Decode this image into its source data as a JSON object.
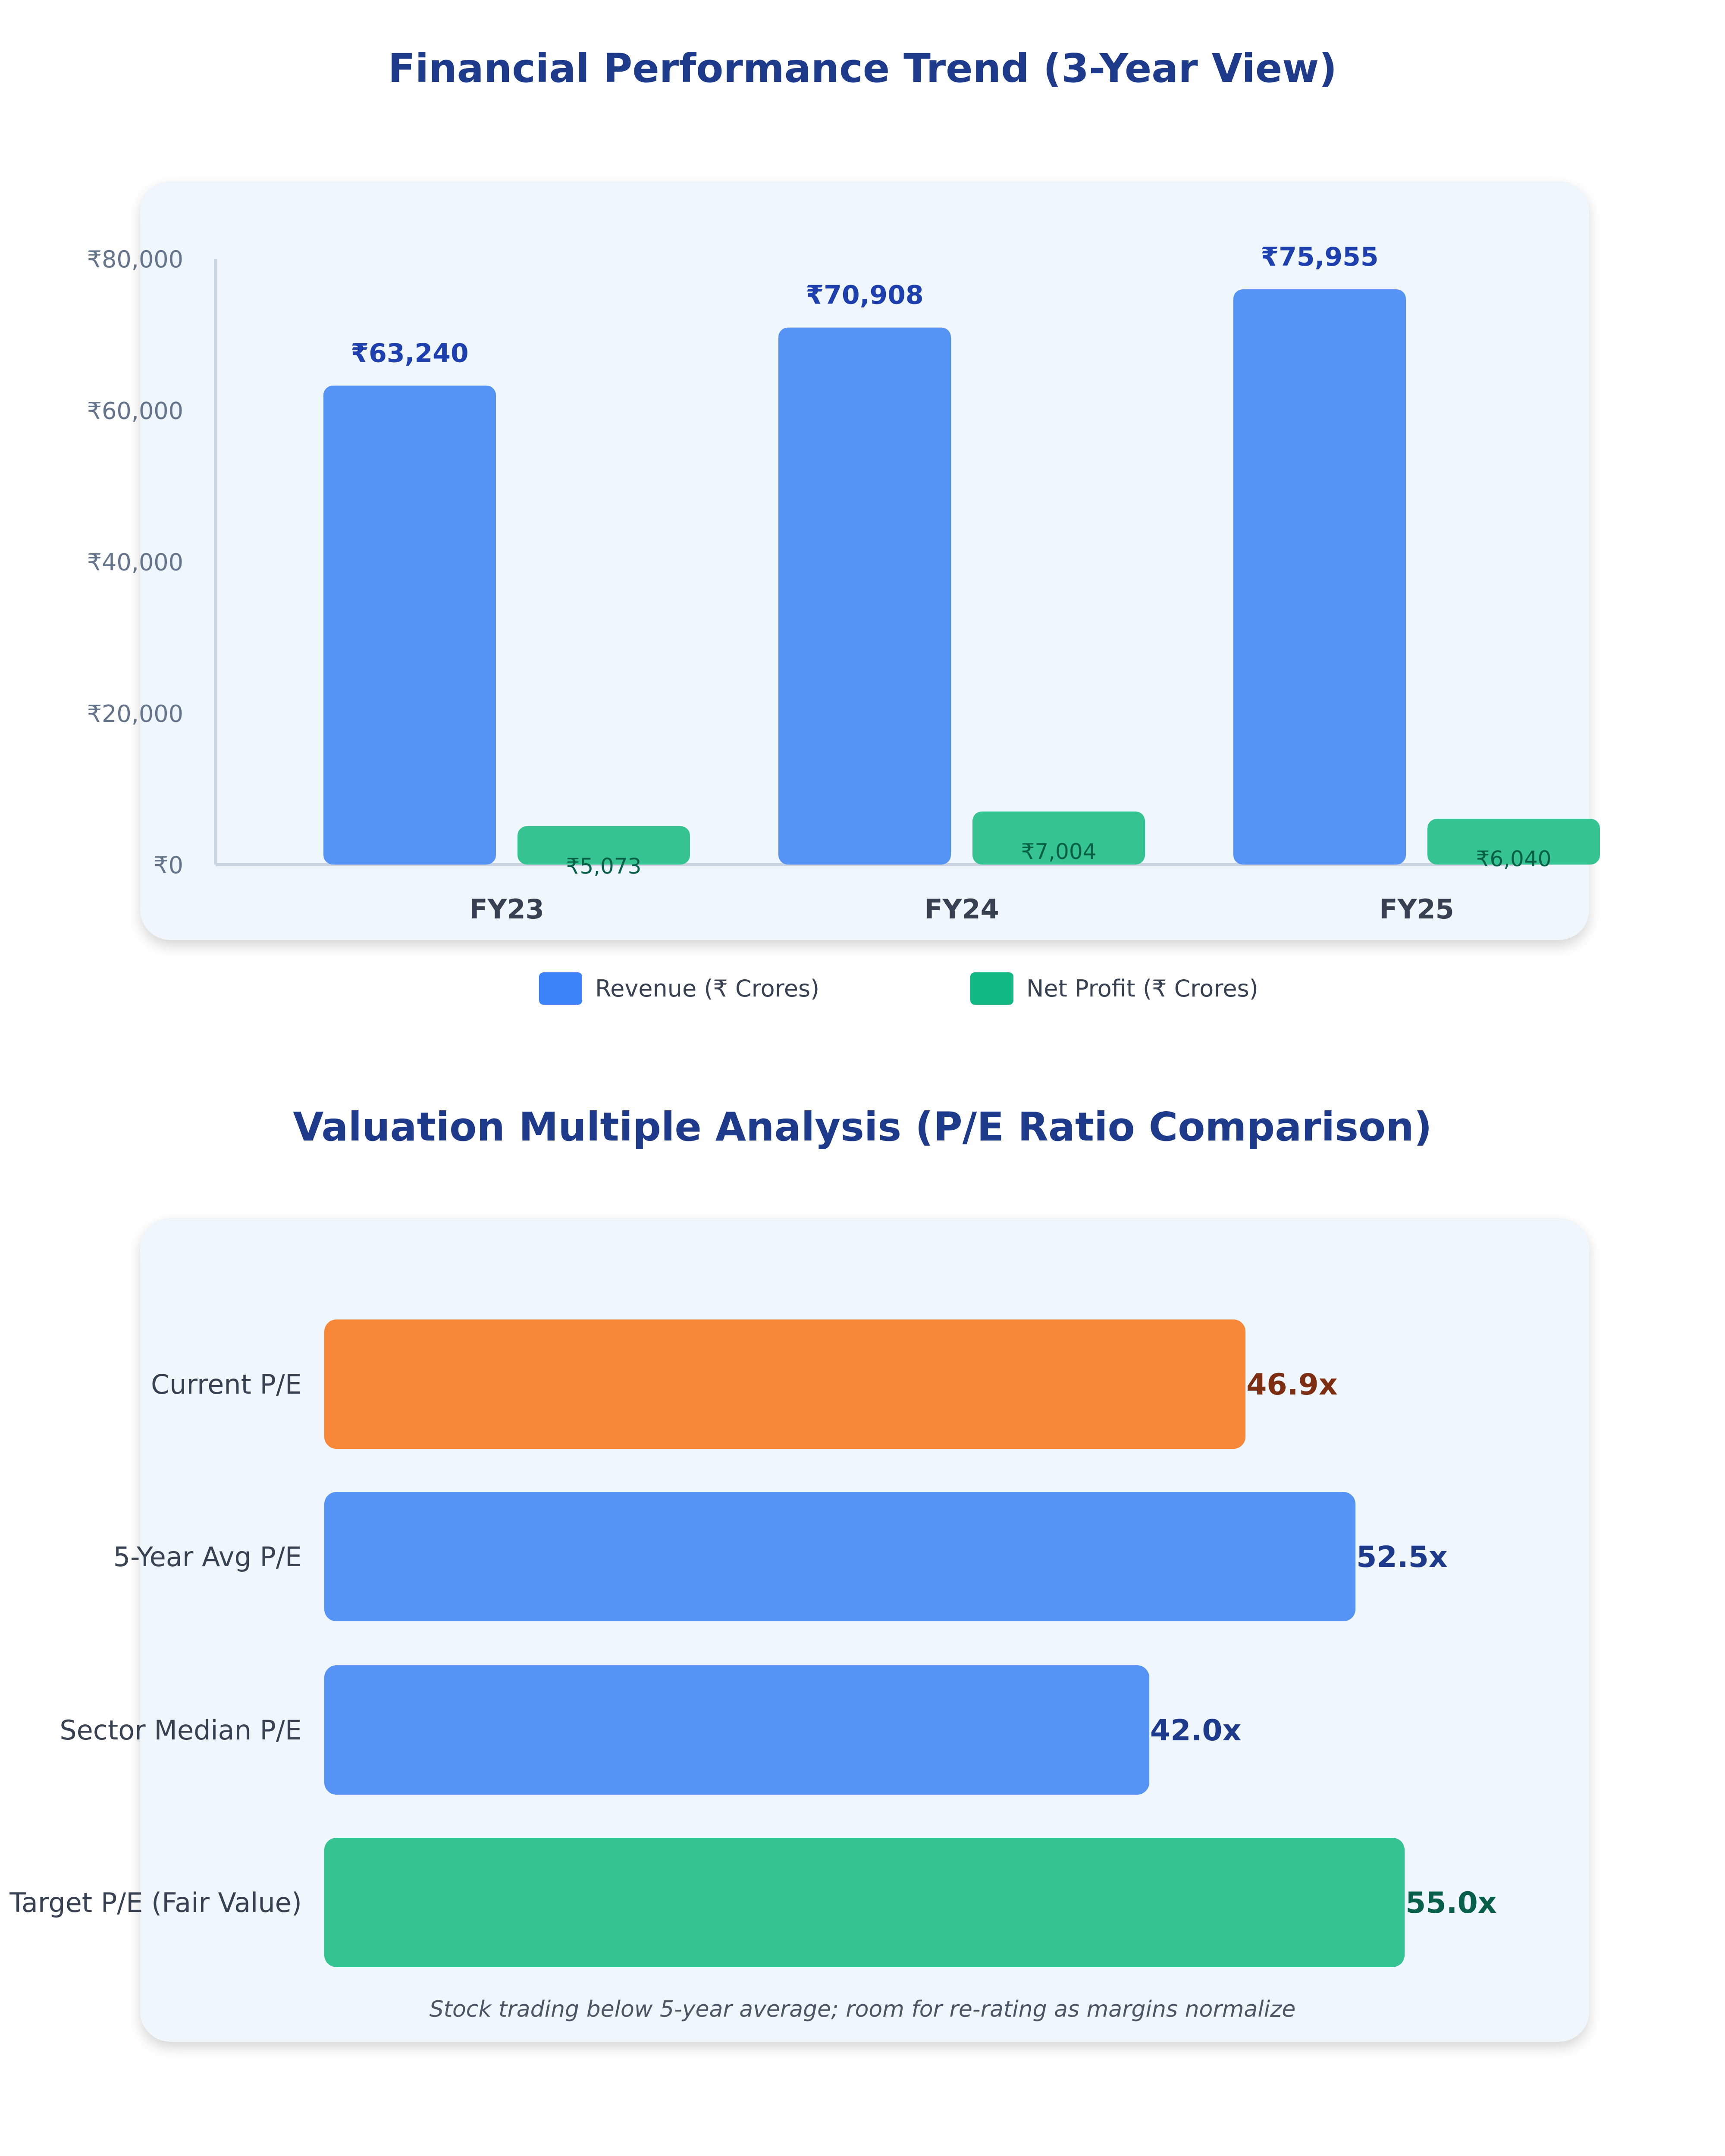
{
  "chart_data": [
    {
      "type": "bar",
      "title": "Financial Performance Trend (3-Year View)",
      "categories": [
        "FY23",
        "FY24",
        "FY25"
      ],
      "series": [
        {
          "name": "Revenue (₹ Crores)",
          "values": [
            63240,
            70908,
            75955
          ],
          "labels": [
            "₹63,240",
            "₹70,908",
            "₹75,955"
          ],
          "color": "#5594f5"
        },
        {
          "name": "Net Profit (₹ Crores)",
          "values": [
            5073,
            7004,
            6040
          ],
          "labels": [
            "₹5,073",
            "₹7,004",
            "₹6,040"
          ],
          "color": "#34c391"
        }
      ],
      "yticks": [
        "₹0",
        "₹20,000",
        "₹40,000",
        "₹60,000",
        "₹80,000"
      ],
      "ytick_values": [
        0,
        20000,
        40000,
        60000,
        80000
      ],
      "ylim": [
        0,
        80000
      ],
      "legend": "bottom"
    },
    {
      "type": "bar",
      "orientation": "horizontal",
      "title": "Valuation Multiple Analysis (P/E Ratio Comparison)",
      "categories": [
        "Current P/E",
        "5-Year Avg P/E",
        "Sector Median P/E",
        "Target P/E (Fair Value)"
      ],
      "values": [
        46.9,
        52.5,
        42.0,
        55.0
      ],
      "labels": [
        "46.9x",
        "52.5x",
        "42.0x",
        "55.0x"
      ],
      "colors": [
        "#f78839",
        "#5594f5",
        "#5594f5",
        "#34c391"
      ],
      "label_colors": [
        "#7c2d12",
        "#1e3a8a",
        "#1e3a8a",
        "#065f46"
      ],
      "note": "Stock trading below 5-year average; room for re-rating as margins normalize"
    }
  ],
  "legend": {
    "revenue": "Revenue (₹ Crores)",
    "net_profit": "Net Profit (₹ Crores)",
    "revenue_color": "#3b82f6",
    "net_profit_color": "#10b981"
  }
}
